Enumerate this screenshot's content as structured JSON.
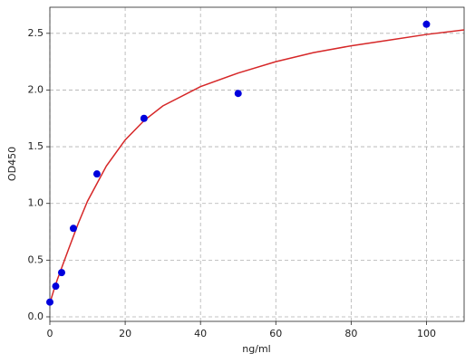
{
  "chart_data": {
    "type": "scatter",
    "x_label": "ng/ml",
    "y_label": "OD450",
    "points": {
      "color": "#0000dd",
      "x": [
        0,
        1.56,
        3.125,
        6.25,
        12.5,
        25,
        50,
        100
      ],
      "values": [
        0.13,
        0.27,
        0.39,
        0.78,
        1.26,
        1.75,
        1.97,
        2.58
      ]
    },
    "curve": {
      "color": "#d62728",
      "x": [
        0,
        1,
        2,
        3,
        5,
        7.5,
        10,
        15,
        20,
        25,
        30,
        40,
        50,
        60,
        70,
        80,
        90,
        100,
        110
      ],
      "values": [
        0.12,
        0.23,
        0.33,
        0.42,
        0.6,
        0.82,
        1.02,
        1.33,
        1.56,
        1.73,
        1.86,
        2.03,
        2.15,
        2.25,
        2.33,
        2.39,
        2.44,
        2.49,
        2.53
      ]
    },
    "xlim": [
      0,
      110
    ],
    "xticks": [
      0,
      20,
      40,
      60,
      80,
      100
    ],
    "ylim": [
      -0.04,
      2.73
    ],
    "yticks": [
      {
        "value": 0,
        "label": "0.0"
      },
      {
        "value": 0.5,
        "label": "0.5"
      },
      {
        "value": 1,
        "label": "1.0"
      },
      {
        "value": 1.5,
        "label": "1.5"
      },
      {
        "value": 2,
        "label": "2.0"
      },
      {
        "value": 2.5,
        "label": "2.5"
      }
    ],
    "grid": true
  }
}
